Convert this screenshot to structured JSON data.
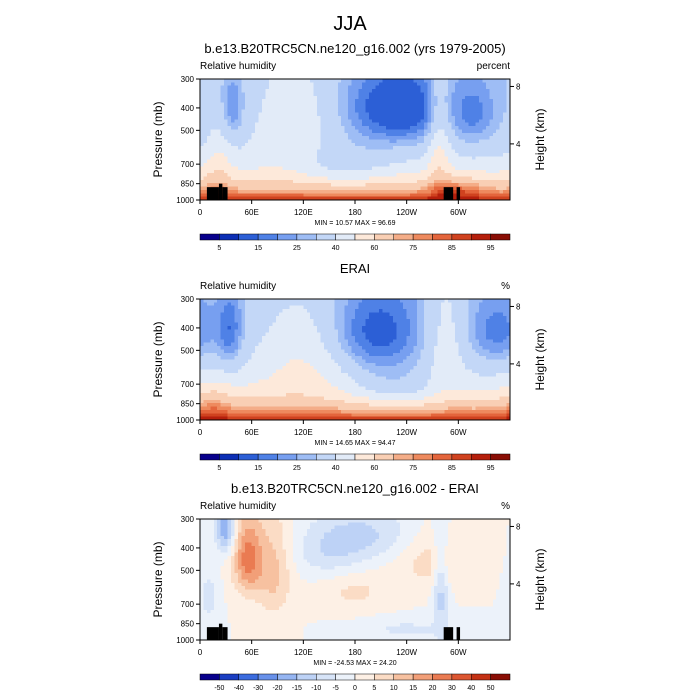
{
  "figure": {
    "main_title": "JJA"
  },
  "colors": {
    "abs_palette": [
      "#07008c",
      "#0c2fb5",
      "#2c5fd6",
      "#4f81e6",
      "#779ff0",
      "#9ebdf5",
      "#c3d7f7",
      "#e2ebf8",
      "#fde9da",
      "#f9cfb4",
      "#f4ad88",
      "#ee8a5e",
      "#e4653c",
      "#d0421f",
      "#b51f0c",
      "#8a0e05"
    ],
    "diff_palette": [
      "#07008c",
      "#1a3ec2",
      "#3b6cdf",
      "#6891ea",
      "#95b5f2",
      "#bdd2f6",
      "#d7e4f8",
      "#ecf2fa",
      "#fdf0e5",
      "#fbdcc5",
      "#f7c1a0",
      "#f29f78",
      "#ea7b52",
      "#dc5631",
      "#c43114",
      "#8a0e05"
    ]
  },
  "chart_data": [
    {
      "type": "heatmap",
      "title": "b.e13.B20TRC5CN.ne120_g16.002 (yrs 1979-2005)",
      "left_label": "Relative humidity",
      "right_label": "percent",
      "ylabel": "Pressure (mb)",
      "ylabel_right": "Height (km)",
      "pressure_ticks": [
        "300",
        "400",
        "500",
        "700",
        "850",
        "1000"
      ],
      "height_ticks": [
        "8",
        "4"
      ],
      "x_ticks": [
        "0",
        "60E",
        "120E",
        "180",
        "120W",
        "60W"
      ],
      "stats": "MIN =  10.57  MAX =  96.69",
      "colorbar_labels": [
        "5",
        "15",
        "25",
        "40",
        "60",
        "75",
        "85",
        "95"
      ],
      "colorbar_levels": [
        5,
        10,
        15,
        20,
        25,
        30,
        40,
        50,
        60,
        70,
        75,
        80,
        85,
        90,
        95
      ],
      "field_mode": "model",
      "min": 10.57,
      "max": 96.69
    },
    {
      "type": "heatmap",
      "title": "ERAI",
      "left_label": "Relative humidity",
      "right_label": "%",
      "ylabel": "Pressure (mb)",
      "ylabel_right": "Height (km)",
      "pressure_ticks": [
        "300",
        "400",
        "500",
        "700",
        "850",
        "1000"
      ],
      "height_ticks": [
        "8",
        "4"
      ],
      "x_ticks": [
        "0",
        "60E",
        "120E",
        "180",
        "120W",
        "60W"
      ],
      "stats": "MIN =  14.65  MAX =  94.47",
      "colorbar_labels": [
        "5",
        "15",
        "25",
        "40",
        "60",
        "75",
        "85",
        "95"
      ],
      "colorbar_levels": [
        5,
        10,
        15,
        20,
        25,
        30,
        40,
        50,
        60,
        70,
        75,
        80,
        85,
        90,
        95
      ],
      "field_mode": "erai",
      "min": 14.65,
      "max": 94.47
    },
    {
      "type": "heatmap",
      "title": "b.e13.B20TRC5CN.ne120_g16.002 - ERAI",
      "left_label": "Relative humidity",
      "right_label": "%",
      "ylabel": "Pressure (mb)",
      "ylabel_right": "Height (km)",
      "pressure_ticks": [
        "300",
        "400",
        "500",
        "700",
        "850",
        "1000"
      ],
      "height_ticks": [
        "8",
        "4"
      ],
      "x_ticks": [
        "0",
        "60E",
        "120E",
        "180",
        "120W",
        "60W"
      ],
      "stats": "MIN = -24.53  MAX =  24.20",
      "colorbar_labels": [
        "-50",
        "-40",
        "-30",
        "-20",
        "-15",
        "-10",
        "-5",
        "0",
        "5",
        "10",
        "15",
        "20",
        "30",
        "40",
        "50"
      ],
      "colorbar_levels": [
        -50,
        -40,
        -30,
        -20,
        -15,
        -10,
        -5,
        0,
        5,
        10,
        15,
        20,
        30,
        40,
        50
      ],
      "field_mode": "diff",
      "min": -24.53,
      "max": 24.2
    }
  ]
}
